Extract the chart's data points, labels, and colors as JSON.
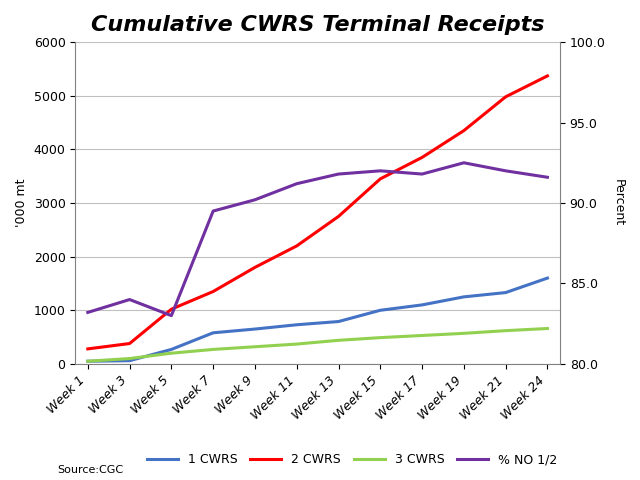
{
  "title": "Cumulative CWRS Terminal Receipts",
  "ylabel_left": "'000 mt",
  "ylabel_right": "Percent",
  "source": "Source:CGC",
  "x_labels": [
    "Week 1",
    "Week 3",
    "Week 5",
    "Week 7",
    "Week 9",
    "Week 11",
    "Week 13",
    "Week 15",
    "Week 17",
    "Week 19",
    "Week 21",
    "Week 24"
  ],
  "cwrs1": [
    50,
    60,
    270,
    580,
    650,
    730,
    790,
    1000,
    1100,
    1250,
    1330,
    1600
  ],
  "cwrs2": [
    280,
    380,
    1020,
    1350,
    1800,
    2200,
    2750,
    3450,
    3850,
    4350,
    4980,
    5370
  ],
  "cwrs3": [
    50,
    100,
    200,
    270,
    320,
    370,
    440,
    490,
    530,
    570,
    620,
    660
  ],
  "pct_no12": [
    83.2,
    84.0,
    83.0,
    89.5,
    90.2,
    91.2,
    91.8,
    92.0,
    91.8,
    92.5,
    92.0,
    91.6
  ],
  "ylim_left": [
    0,
    6000
  ],
  "ylim_right": [
    80.0,
    100.0
  ],
  "color_cwrs1": "#4472C4",
  "color_cwrs2": "#FF0000",
  "color_cwrs3": "#92D050",
  "color_pct": "#7030A0",
  "background_color": "#FFFFFF",
  "grid_color": "#C0C0C0",
  "title_fontsize": 16,
  "axis_fontsize": 9,
  "legend_fontsize": 9,
  "yticks_left": [
    0,
    1000,
    2000,
    3000,
    4000,
    5000,
    6000
  ],
  "yticks_right": [
    80.0,
    85.0,
    90.0,
    95.0,
    100.0
  ],
  "linewidth": 2.2
}
